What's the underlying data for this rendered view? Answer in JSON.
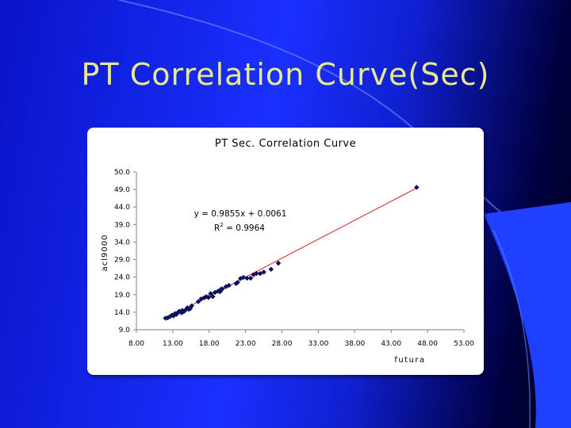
{
  "slide": {
    "title": "PT Correlation Curve(Sec)"
  },
  "colors": {
    "background": "#1a30ff",
    "title_text": "#e8e890",
    "points": "#101060",
    "trendline": "#cc2020"
  },
  "chart_data": {
    "type": "scatter",
    "title": "PT Sec. Correlation Curve",
    "xlabel": "futura",
    "ylabel": "acl9000",
    "xlim": [
      8.0,
      53.0
    ],
    "ylim": [
      9.0,
      50.0
    ],
    "x_ticks": [
      "8.00",
      "13.00",
      "18.00",
      "23.00",
      "28.00",
      "33.00",
      "38.00",
      "43.00",
      "48.00",
      "53.00"
    ],
    "y_ticks": [
      "9.0",
      "14.0",
      "19.0",
      "24.0",
      "29.0",
      "34.0",
      "39.0",
      "44.0",
      "49.0",
      "50.0"
    ],
    "trendline": {
      "slope": 0.9855,
      "intercept": 0.0061
    },
    "annotations": {
      "equation": "y = 0.9855x + 0.0061",
      "r2_prefix": "R",
      "r2_sup": "2",
      "r2_value": " = 0.9964"
    },
    "grid": false,
    "series": [
      {
        "x": [
          12.0,
          12.3,
          12.6,
          12.9,
          13.1,
          13.3,
          13.5,
          13.7,
          13.9,
          14.1,
          14.3,
          14.5,
          14.8,
          15.0,
          15.2,
          15.4,
          15.6,
          16.5,
          16.9,
          17.3,
          17.6,
          17.9,
          18.2,
          18.5,
          18.8,
          19.2,
          19.5,
          19.8,
          20.3,
          20.7,
          21.7,
          21.9,
          22.3,
          22.7,
          23.2,
          23.7,
          24.1,
          24.5,
          25.5,
          26.5,
          27.5
        ],
        "y": [
          12.0,
          12.1,
          12.4,
          12.8,
          12.6,
          13.2,
          13.0,
          13.5,
          13.8,
          13.6,
          14.0,
          13.7,
          14.2,
          14.7,
          14.3,
          14.5,
          15.2,
          16.3,
          17.0,
          17.3,
          17.6,
          17.4,
          18.4,
          17.6,
          18.7,
          19.0,
          18.9,
          19.6,
          20.2,
          20.5,
          21.0,
          21.3,
          22.3,
          22.6,
          22.4,
          22.4,
          23.3,
          23.6,
          24.0,
          24.7,
          26.3
        ]
      },
      {
        "x": [
          14.2,
          17.9,
          19.6,
          25.0,
          46.5
        ],
        "y": [
          13.4,
          17.4,
          19.5,
          23.6,
          46.0
        ]
      }
    ]
  }
}
